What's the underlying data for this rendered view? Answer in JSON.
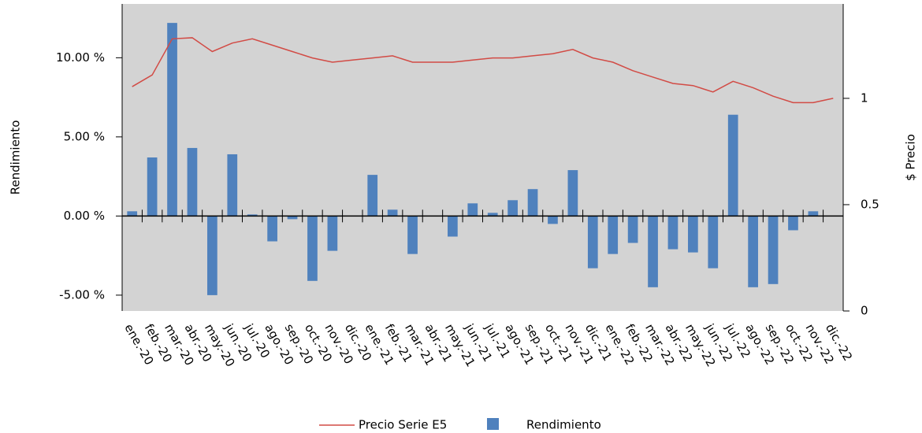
{
  "chart_data": {
    "type": "bar_line",
    "y_label": "Rendimiento",
    "y2_label": "$ Precio",
    "categories": [
      "ene.-20",
      "feb.-20",
      "mar.-20",
      "abr.-20",
      "may.-20",
      "jun.-20",
      "jul.-20",
      "ago.-20",
      "sep.-20",
      "oct.-20",
      "nov.-20",
      "dic.-20",
      "ene.-21",
      "feb.-21",
      "mar.-21",
      "abr.-21",
      "may.-21",
      "jun.-21",
      "jul.-21",
      "ago.-21",
      "sep.-21",
      "oct.-21",
      "nov.-21",
      "dic.-21",
      "ene.-22",
      "feb.-22",
      "mar.-22",
      "abr.-22",
      "may.-22",
      "jun.-22",
      "jul.-22",
      "ago.-22",
      "sep.-22",
      "oct.-22",
      "nov.-22",
      "dic.-22"
    ],
    "series": [
      {
        "name": "Precio Serie E5",
        "type": "line",
        "axis": "y2",
        "color": "#d24b45",
        "values": [
          1.055,
          1.11,
          1.28,
          1.285,
          1.22,
          1.26,
          1.28,
          1.25,
          1.22,
          1.19,
          1.17,
          1.18,
          1.19,
          1.2,
          1.17,
          1.17,
          1.17,
          1.18,
          1.19,
          1.19,
          1.2,
          1.21,
          1.23,
          1.19,
          1.17,
          1.13,
          1.1,
          1.07,
          1.06,
          1.03,
          1.08,
          1.05,
          1.01,
          0.98,
          0.98,
          1.0
        ]
      },
      {
        "name": "Rendimiento",
        "type": "bar",
        "axis": "y",
        "color": "#4f81bd",
        "values": [
          0.3,
          3.7,
          12.2,
          4.3,
          -5.0,
          3.9,
          0.1,
          -1.6,
          -0.2,
          -4.1,
          -2.2,
          0,
          2.6,
          0.4,
          -2.4,
          0,
          -1.3,
          0.8,
          0.2,
          1.0,
          1.7,
          -0.5,
          2.9,
          -3.3,
          -2.4,
          -1.7,
          -4.5,
          -2.1,
          -2.3,
          -3.3,
          6.4,
          -4.5,
          -4.3,
          -0.9,
          0.3,
          0
        ]
      }
    ],
    "ylim": [
      -6,
      13.4
    ],
    "yticks": [
      {
        "value": -5,
        "label": "-5.00 %"
      },
      {
        "value": 0,
        "label": "0.00 %"
      },
      {
        "value": 5,
        "label": "5.00 %"
      },
      {
        "value": 10,
        "label": "10.00 %"
      }
    ],
    "y2lim": [
      0,
      1.444
    ],
    "y2ticks": [
      0,
      0.5,
      1
    ],
    "plot_background": "#d3d3d3",
    "legend": "bottom"
  }
}
